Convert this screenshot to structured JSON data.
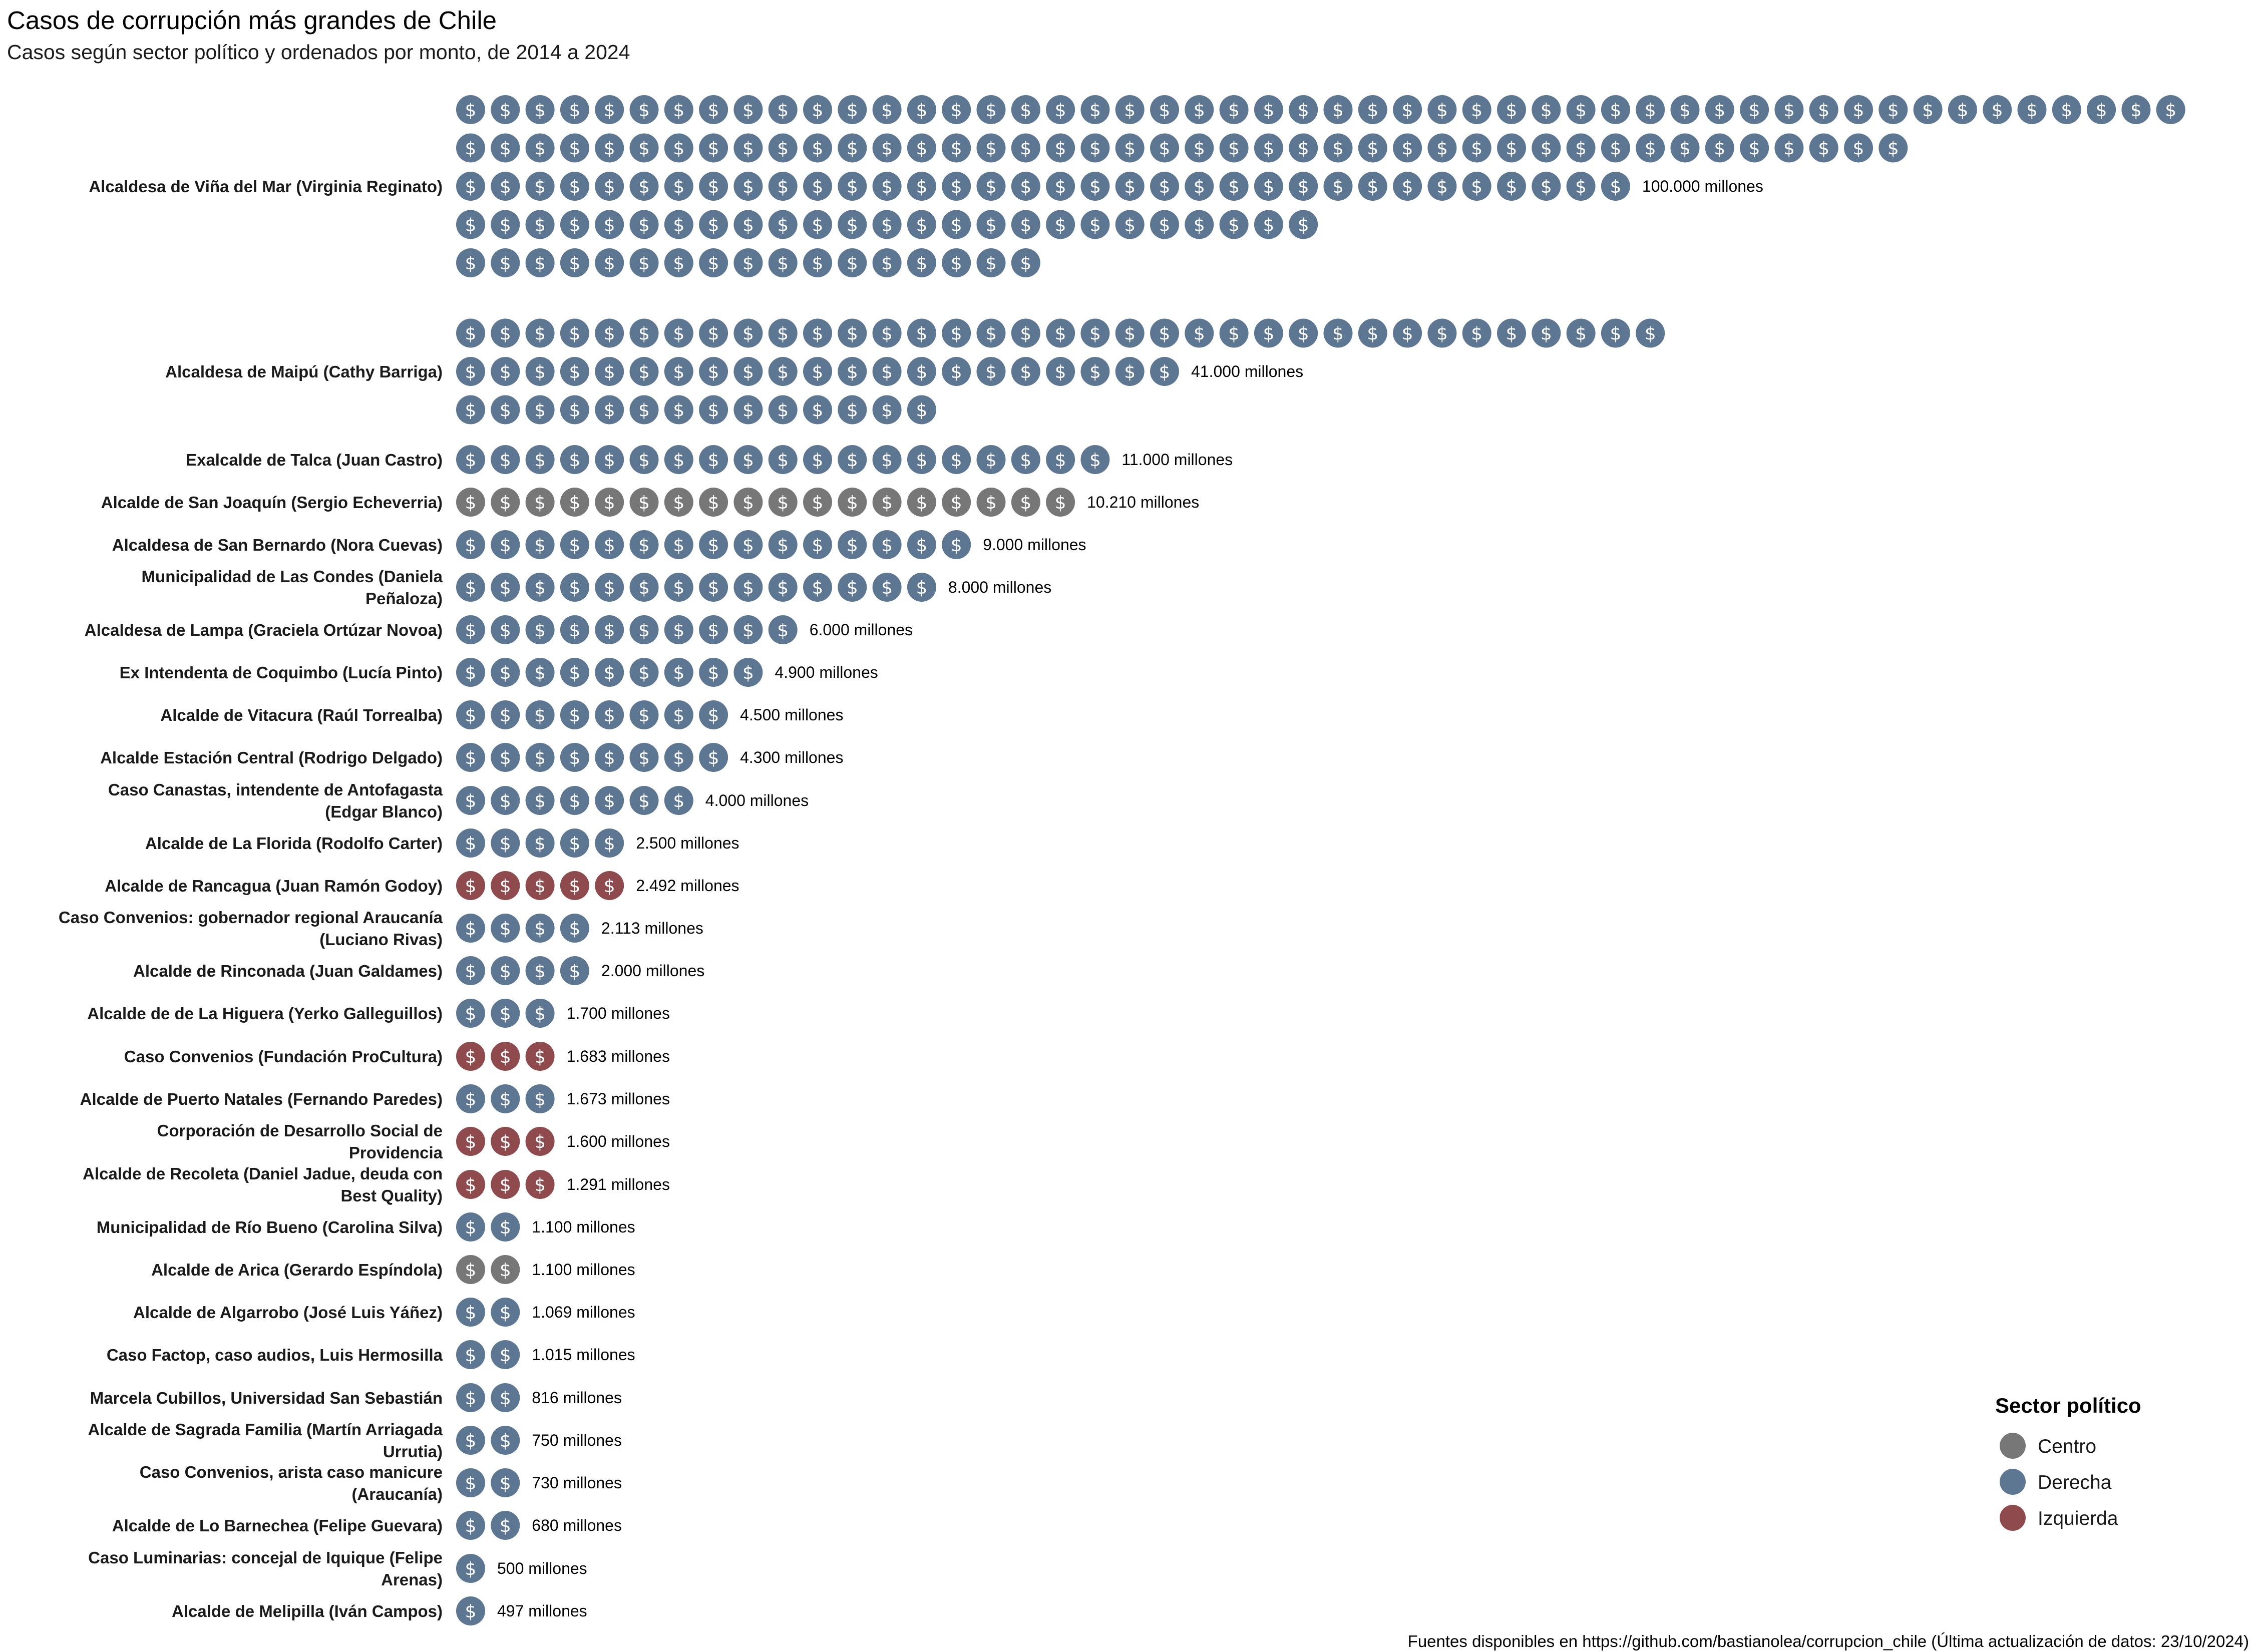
{
  "chart_data": {
    "type": "pictogram",
    "title": "Casos de corrupción más grandes de Chile",
    "subtitle": "Casos según sector político y ordenados por monto, de 2014 a 2024",
    "caption": "Fuentes disponibles en https://github.com/bastianolea/corrupcion_chile (Última actualización de datos: 23/10/2024)",
    "icon": "dollar-coin-icon",
    "colors": {
      "Centro": "#777777",
      "Derecha": "#5d7691",
      "Izquierda": "#8e4a4c"
    },
    "legend": {
      "title": "Sector político",
      "position": "right",
      "items": [
        "Centro",
        "Derecha",
        "Izquierda"
      ]
    },
    "rows": [
      {
        "label": [
          "Alcaldesa de Viña del Mar (Virginia Reginato)"
        ],
        "sector": "Derecha",
        "coins": [
          50,
          42,
          34,
          25,
          17
        ],
        "amount": "100.000 millones"
      },
      {
        "label": [
          "Alcaldesa de Maipú (Cathy Barriga)"
        ],
        "sector": "Derecha",
        "coins": [
          35,
          21,
          14
        ],
        "amount": "41.000 millones"
      },
      {
        "label": [
          "Exalcalde de Talca (Juan Castro)"
        ],
        "sector": "Derecha",
        "coins": [
          19
        ],
        "amount": "11.000 millones"
      },
      {
        "label": [
          "Alcalde de San Joaquín (Sergio Echeverria)"
        ],
        "sector": "Centro",
        "coins": [
          18
        ],
        "amount": "10.210 millones"
      },
      {
        "label": [
          "Alcaldesa de San Bernardo (Nora Cuevas)"
        ],
        "sector": "Derecha",
        "coins": [
          15
        ],
        "amount": "9.000 millones"
      },
      {
        "label": [
          "Municipalidad de Las Condes (Daniela",
          "Peñaloza)"
        ],
        "sector": "Derecha",
        "coins": [
          14
        ],
        "amount": "8.000 millones"
      },
      {
        "label": [
          "Alcaldesa de Lampa (Graciela Ortúzar Novoa)"
        ],
        "sector": "Derecha",
        "coins": [
          10
        ],
        "amount": "6.000 millones"
      },
      {
        "label": [
          "Ex Intendenta de Coquimbo (Lucía Pinto)"
        ],
        "sector": "Derecha",
        "coins": [
          9
        ],
        "amount": "4.900 millones"
      },
      {
        "label": [
          "Alcalde de Vitacura (Raúl Torrealba)"
        ],
        "sector": "Derecha",
        "coins": [
          8
        ],
        "amount": "4.500 millones"
      },
      {
        "label": [
          "Alcalde Estación Central (Rodrigo Delgado)"
        ],
        "sector": "Derecha",
        "coins": [
          8
        ],
        "amount": "4.300 millones"
      },
      {
        "label": [
          "Caso Canastas, intendente de Antofagasta",
          "(Edgar Blanco)"
        ],
        "sector": "Derecha",
        "coins": [
          7
        ],
        "amount": "4.000 millones"
      },
      {
        "label": [
          "Alcalde de La Florida (Rodolfo Carter)"
        ],
        "sector": "Derecha",
        "coins": [
          5
        ],
        "amount": "2.500 millones"
      },
      {
        "label": [
          "Alcalde de Rancagua (Juan Ramón Godoy)"
        ],
        "sector": "Izquierda",
        "coins": [
          5
        ],
        "amount": "2.492 millones"
      },
      {
        "label": [
          "Caso Convenios: gobernador regional Araucanía",
          "(Luciano Rivas)"
        ],
        "sector": "Derecha",
        "coins": [
          4
        ],
        "amount": "2.113 millones"
      },
      {
        "label": [
          "Alcalde de Rinconada (Juan Galdames)"
        ],
        "sector": "Derecha",
        "coins": [
          4
        ],
        "amount": "2.000 millones"
      },
      {
        "label": [
          "Alcalde de de La Higuera (Yerko Galleguillos)"
        ],
        "sector": "Derecha",
        "coins": [
          3
        ],
        "amount": "1.700 millones"
      },
      {
        "label": [
          "Caso Convenios (Fundación ProCultura)"
        ],
        "sector": "Izquierda",
        "coins": [
          3
        ],
        "amount": "1.683 millones"
      },
      {
        "label": [
          "Alcalde de Puerto Natales (Fernando Paredes)"
        ],
        "sector": "Derecha",
        "coins": [
          3
        ],
        "amount": "1.673 millones"
      },
      {
        "label": [
          "Corporación de Desarrollo Social de",
          "Providencia"
        ],
        "sector": "Izquierda",
        "coins": [
          3
        ],
        "amount": "1.600 millones"
      },
      {
        "label": [
          "Alcalde de Recoleta (Daniel Jadue, deuda con",
          "Best Quality)"
        ],
        "sector": "Izquierda",
        "coins": [
          3
        ],
        "amount": "1.291 millones"
      },
      {
        "label": [
          "Municipalidad de Río Bueno (Carolina Silva)"
        ],
        "sector": "Derecha",
        "coins": [
          2
        ],
        "amount": "1.100 millones"
      },
      {
        "label": [
          "Alcalde de Arica (Gerardo Espíndola)"
        ],
        "sector": "Centro",
        "coins": [
          2
        ],
        "amount": "1.100 millones"
      },
      {
        "label": [
          "Alcalde de Algarrobo (José Luis Yáñez)"
        ],
        "sector": "Derecha",
        "coins": [
          2
        ],
        "amount": "1.069 millones"
      },
      {
        "label": [
          "Caso Factop, caso audios, Luis Hermosilla"
        ],
        "sector": "Derecha",
        "coins": [
          2
        ],
        "amount": "1.015 millones"
      },
      {
        "label": [
          "Marcela Cubillos, Universidad San Sebastián"
        ],
        "sector": "Derecha",
        "coins": [
          2
        ],
        "amount": "816 millones"
      },
      {
        "label": [
          "Alcalde de Sagrada Familia (Martín Arriagada",
          "Urrutia)"
        ],
        "sector": "Derecha",
        "coins": [
          2
        ],
        "amount": "750 millones"
      },
      {
        "label": [
          "Caso Convenios, arista caso manicure",
          "(Araucanía)"
        ],
        "sector": "Derecha",
        "coins": [
          2
        ],
        "amount": "730 millones"
      },
      {
        "label": [
          "Alcalde de Lo Barnechea (Felipe Guevara)"
        ],
        "sector": "Derecha",
        "coins": [
          2
        ],
        "amount": "680 millones"
      },
      {
        "label": [
          "Caso Luminarias: concejal de Iquique (Felipe",
          "Arenas)"
        ],
        "sector": "Derecha",
        "coins": [
          1
        ],
        "amount": "500 millones"
      },
      {
        "label": [
          "Alcalde de Melipilla (Iván Campos)"
        ],
        "sector": "Derecha",
        "coins": [
          1
        ],
        "amount": "497 millones"
      }
    ]
  }
}
